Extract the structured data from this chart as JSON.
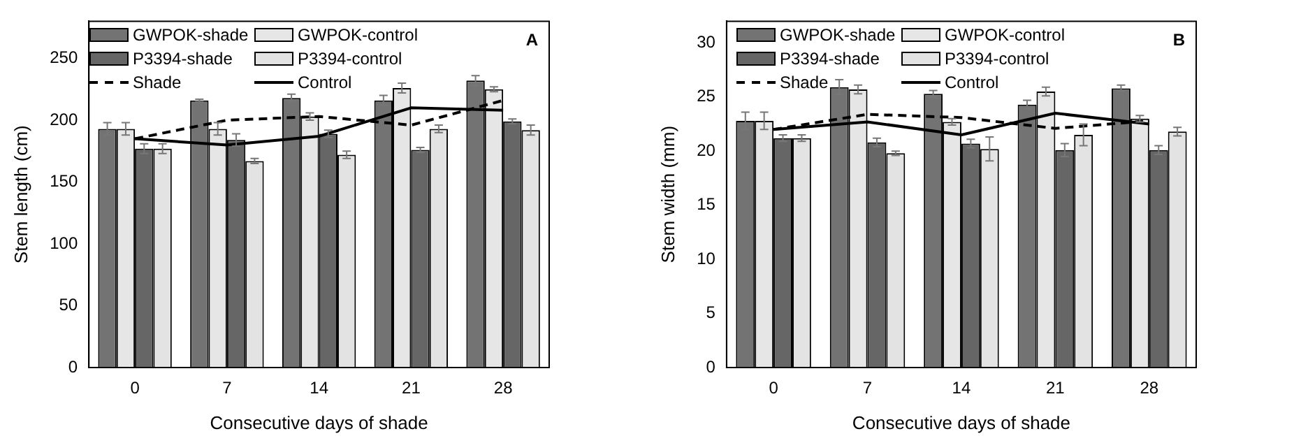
{
  "chart_data": [
    {
      "type": "bar",
      "xlabel": "Consecutive days of shade",
      "ylabel": "Stem length (cm)",
      "annotations": [
        "A"
      ],
      "categories": [
        "0",
        "7",
        "14",
        "21",
        "28"
      ],
      "ylim": [
        0,
        280
      ],
      "yticks": [
        0,
        50,
        100,
        150,
        200,
        250
      ],
      "grid": false,
      "legend": "top left",
      "series": [
        {
          "name": "GWPOK-shade",
          "color": "#737373",
          "values": [
            193,
            216,
            218,
            216,
            232
          ],
          "errors": [
            5,
            1,
            3,
            4,
            4
          ]
        },
        {
          "name": "GWPOK-control",
          "color": "#e6e6e6",
          "values": [
            193,
            193,
            203,
            226,
            225
          ],
          "errors": [
            5,
            5,
            3,
            4,
            2
          ]
        },
        {
          "name": "P3394-shade",
          "color": "#666666",
          "values": [
            177,
            184,
            189,
            176,
            199
          ],
          "errors": [
            4,
            5,
            3,
            2,
            2
          ]
        },
        {
          "name": "P3394-control",
          "color": "#e3e3e3",
          "values": [
            177,
            167,
            172,
            193,
            192
          ],
          "errors": [
            4,
            2,
            3,
            3,
            4
          ]
        },
        {
          "name": "Shade",
          "type": "line",
          "color": "#000000",
          "line_style": "dashed",
          "values": [
            185,
            200,
            203,
            196,
            216
          ]
        },
        {
          "name": "Control",
          "type": "line",
          "color": "#000000",
          "line_style": "solid",
          "values": [
            185,
            180,
            187,
            210,
            208
          ]
        }
      ]
    },
    {
      "type": "bar",
      "xlabel": "Consecutive days of shade",
      "ylabel": "Stem width (mm)",
      "annotations": [
        "B"
      ],
      "categories": [
        "0",
        "7",
        "14",
        "21",
        "28"
      ],
      "ylim": [
        0,
        32
      ],
      "yticks": [
        0,
        5,
        10,
        15,
        20,
        25,
        30
      ],
      "grid": false,
      "legend": "top left",
      "series": [
        {
          "name": "GWPOK-shade",
          "color": "#737373",
          "values": [
            22.8,
            25.9,
            25.3,
            24.3,
            25.8
          ],
          "errors": [
            0.8,
            0.7,
            0.3,
            0.4,
            0.3
          ]
        },
        {
          "name": "GWPOK-control",
          "color": "#e6e6e6",
          "values": [
            22.8,
            25.7,
            22.7,
            25.5,
            23.0
          ],
          "errors": [
            0.8,
            0.4,
            0.3,
            0.4,
            0.3
          ]
        },
        {
          "name": "P3394-shade",
          "color": "#666666",
          "values": [
            21.2,
            20.8,
            20.7,
            20.1,
            20.1
          ],
          "errors": [
            0.3,
            0.4,
            0.4,
            0.6,
            0.4
          ]
        },
        {
          "name": "P3394-control",
          "color": "#e3e3e3",
          "values": [
            21.2,
            19.8,
            20.2,
            21.5,
            21.8
          ],
          "errors": [
            0.3,
            0.2,
            1.1,
            1.0,
            0.4
          ]
        },
        {
          "name": "Shade",
          "type": "line",
          "color": "#000000",
          "line_style": "dashed",
          "values": [
            22.0,
            23.4,
            23.1,
            22.1,
            22.8
          ]
        },
        {
          "name": "Control",
          "type": "line",
          "color": "#000000",
          "line_style": "solid",
          "values": [
            22.0,
            22.7,
            21.5,
            23.5,
            22.5
          ]
        }
      ]
    }
  ]
}
